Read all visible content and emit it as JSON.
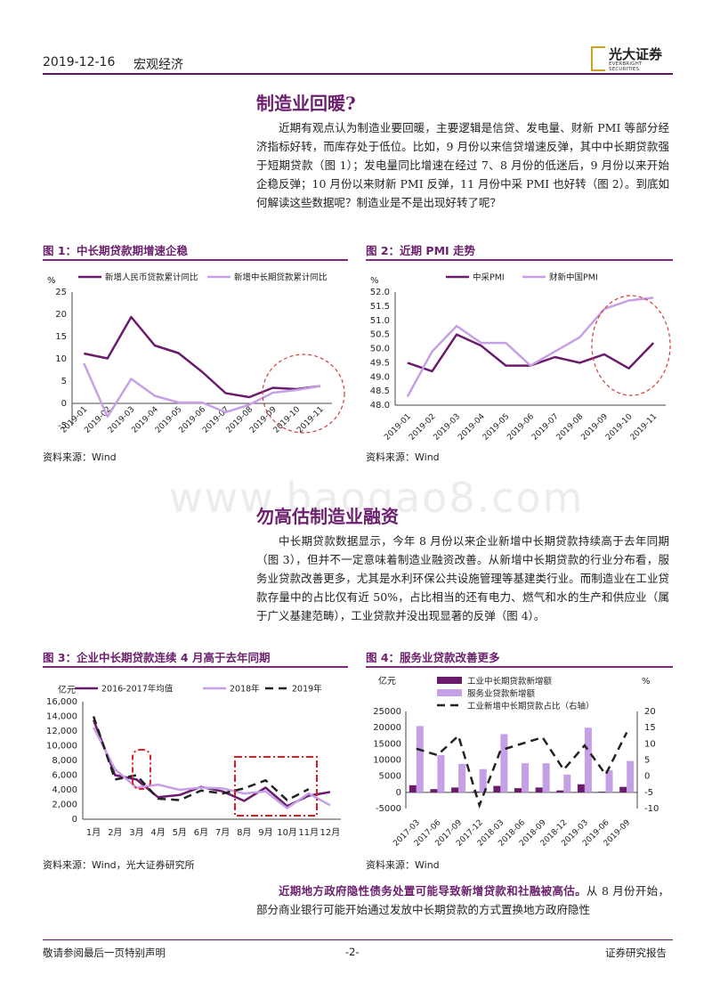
{
  "header": {
    "date": "2019-12-16",
    "section": "宏观经济",
    "brand_cn": "光大证券",
    "brand_en": "EVERBRIGHT SECURITIES"
  },
  "section1": {
    "title": "制造业回暖?",
    "para": "近期有观点认为制造业要回暖，主要逻辑是信贷、发电量、财新 PMI 等部分经济指标好转，而库存处于低位。比如，9 月份以来信贷增速反弹，其中中长期贷款强于短期贷款（图 1）；发电量同比增速在经过 7、8 月份的低迷后，9 月份以来开始企稳反弹；10 月份以来财新 PMI 反弹，11 月份中采 PMI 也好转（图 2）。到底如何解读这些数据呢？制造业是不是出现好转了呢？"
  },
  "fig1": {
    "title": "图 1：中长期贷款期增速企稳",
    "source": "资料来源：Wind",
    "chart_data": {
      "type": "line",
      "ylabel": "%",
      "ylim": [
        -5,
        25
      ],
      "yticks": [
        "25",
        "20",
        "15",
        "10",
        "5",
        "0",
        "-5"
      ],
      "categories": [
        "2019-01",
        "2019-02",
        "2019-03",
        "2019-04",
        "2019-05",
        "2019-06",
        "2019-07",
        "2019-08",
        "2019-09",
        "2019-10",
        "2019-11"
      ],
      "series": [
        {
          "name": "新增人民币贷款累计同比",
          "color": "#6a1b6c",
          "values": [
            11.2,
            10.1,
            19.4,
            13.0,
            11.3,
            7.1,
            2.3,
            1.4,
            3.5,
            3.2,
            3.9
          ]
        },
        {
          "name": "新增中长期贷款累计同比",
          "color": "#c6a0e6",
          "values": [
            9.0,
            -3.0,
            5.5,
            1.7,
            0.2,
            0.2,
            -2.0,
            -0.3,
            2.4,
            3.0,
            3.9
          ]
        }
      ]
    }
  },
  "fig2": {
    "title": "图 2：近期 PMI 走势",
    "source": "资料来源：Wind",
    "chart_data": {
      "type": "line",
      "ylabel": "%",
      "ylim": [
        48.0,
        52.0
      ],
      "yticks": [
        "52.0",
        "51.5",
        "51.0",
        "50.5",
        "50.0",
        "49.5",
        "49.0",
        "48.5",
        "48.0"
      ],
      "categories": [
        "2019-01",
        "2019-02",
        "2019-03",
        "2019-04",
        "2019-05",
        "2019-06",
        "2019-07",
        "2019-08",
        "2019-09",
        "2019-10",
        "2019-11"
      ],
      "series": [
        {
          "name": "中采PMI",
          "color": "#6a1b6c",
          "values": [
            49.5,
            49.2,
            50.5,
            50.1,
            49.4,
            49.4,
            49.7,
            49.5,
            49.8,
            49.3,
            50.2
          ]
        },
        {
          "name": "财新中国PMI",
          "color": "#c6a0e6",
          "values": [
            48.3,
            49.9,
            50.8,
            50.2,
            50.2,
            49.4,
            49.9,
            50.4,
            51.4,
            51.7,
            51.8
          ]
        }
      ]
    }
  },
  "watermark": "www.baogao8.com",
  "section2": {
    "title": "勿高估制造业融资",
    "para": "中长期贷款数据显示，今年 8 月份以来企业新增中长期贷款持续高于去年同期（图 3），但并不一定意味着制造业融资改善。从新增中长期贷款的行业分布看，服务业贷款改善更多，尤其是水利环保公共设施管理等基建类行业。而制造业在工业贷款存量中的占比仅有近 50%，占比相当的还有电力、燃气和水的生产和供应业（属于广义基建范畴），工业贷款并没出现显著的反弹（图 4）。"
  },
  "fig3": {
    "title": "图 3：企业中长期贷款连续 4 月高于去年同期",
    "source": "资料来源：Wind，光大证券研究所",
    "chart_data": {
      "type": "line",
      "ylabel": "亿元",
      "ylim": [
        0,
        16000
      ],
      "yticks": [
        "16,000",
        "14,000",
        "12,000",
        "10,000",
        "8,000",
        "6,000",
        "4,000",
        "2,000",
        "0"
      ],
      "categories": [
        "1月",
        "2月",
        "3月",
        "4月",
        "5月",
        "6月",
        "7月",
        "8月",
        "9月",
        "10月",
        "11月",
        "12月"
      ],
      "series": [
        {
          "name": "2016-2017年均值",
          "color": "#6a1b6c",
          "values": [
            13500,
            6000,
            5400,
            3000,
            3300,
            4400,
            3800,
            2500,
            4300,
            1800,
            3200,
            3700
          ]
        },
        {
          "name": "2018年",
          "color": "#c6a0e6",
          "values": [
            12500,
            6800,
            4300,
            4700,
            4000,
            4300,
            4200,
            3500,
            3800,
            1500,
            3500,
            1900
          ]
        },
        {
          "name": "2019年",
          "color": "#222222",
          "values": [
            14000,
            5400,
            6000,
            2800,
            2600,
            3900,
            3500,
            4200,
            5300,
            2600,
            4100,
            null
          ]
        }
      ]
    }
  },
  "fig4": {
    "title": "图 4：服务业贷款改善更多",
    "source": "资料来源：Wind",
    "chart_data": {
      "type": "bar",
      "ylabel": "亿元",
      "y2label": "%",
      "ylim": [
        -5000,
        25000
      ],
      "y2lim": [
        -10,
        20
      ],
      "yticks": [
        "25000",
        "20000",
        "15000",
        "10000",
        "5000",
        "0",
        "-5000"
      ],
      "y2ticks": [
        "20",
        "15",
        "10",
        "5",
        "0",
        "-5",
        "-10"
      ],
      "categories": [
        "2017-03",
        "2017-06",
        "2017-09",
        "2017-12",
        "2018-03",
        "2018-06",
        "2018-09",
        "2018-12",
        "2019-03",
        "2019-06",
        "2019-09"
      ],
      "series": [
        {
          "name": "工业中长期贷款新增额",
          "color": "#6a1b6c",
          "values": [
            2200,
            1000,
            1500,
            300,
            2000,
            1300,
            1500,
            600,
            2500,
            200,
            1700
          ]
        },
        {
          "name": "服务业贷款新增额",
          "color": "#c6a0e6",
          "values": [
            20500,
            11500,
            8800,
            7200,
            18000,
            9000,
            9000,
            5500,
            20000,
            6800,
            9700
          ]
        },
        {
          "name": "工业新增中长期贷款占比（右轴）",
          "color": "#222222",
          "axis": "right",
          "values": [
            8.5,
            6.5,
            12.5,
            -9.0,
            8.0,
            10.0,
            12.0,
            2.0,
            9.5,
            0.5,
            13.5
          ]
        }
      ]
    }
  },
  "section3": {
    "lead": "近期地方政府隐性债务处置可能导致新增贷款和社融被高估。",
    "para": "从 8 月份开始，部分商业银行可能开始通过发放中长期贷款的方式置换地方政府隐性"
  },
  "footer": {
    "left": "敬请参阅最后一页特别声明",
    "page": "-2-",
    "right": "证券研究报告"
  }
}
